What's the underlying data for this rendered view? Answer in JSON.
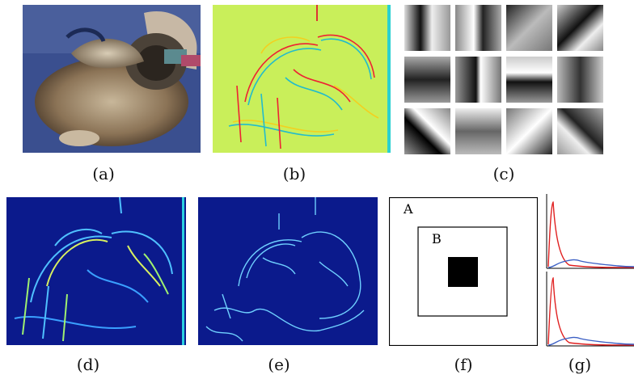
{
  "captions": {
    "a": "(a)",
    "b": "(b)",
    "c": "(c)",
    "d": "(d)",
    "e": "(e)",
    "f": "(f)",
    "g": "(g)"
  },
  "panel_f": {
    "outer_label": "A",
    "inner_label": "B"
  },
  "colors": {
    "photo_background": "#3a4f8f",
    "edge_map_background": "#c9ef5a",
    "magnitude_background": "#0b1a8c",
    "histogram_red": "#e02020",
    "histogram_blue": "#3b5fc4"
  }
}
